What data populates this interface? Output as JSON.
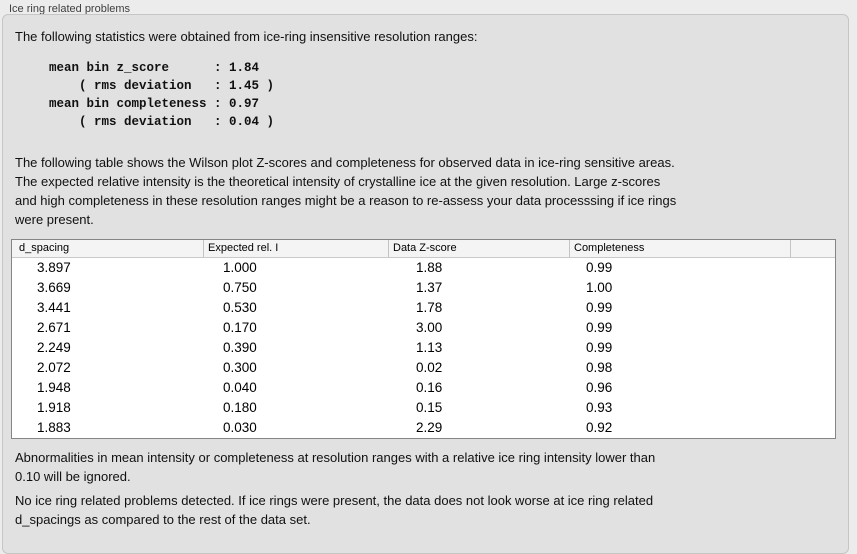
{
  "window": {
    "title": "Ice ring related problems"
  },
  "panel": {
    "intro": "The following statistics were obtained from ice-ring insensitive resolution ranges:",
    "stats_block": "mean bin z_score      : 1.84\n    ( rms deviation   : 1.45 )\nmean bin completeness : 0.97\n    ( rms deviation   : 0.04 )",
    "description": "The following table shows the Wilson plot Z-scores and completeness for observed data in ice-ring sensitive areas.\nThe expected relative intensity is the theoretical intensity of crystalline ice at the given resolution. Large z-scores\nand high completeness in these resolution ranges might be a reason to re-assess your data processsing if ice rings\nwere present.",
    "table": {
      "columns": [
        "d_spacing",
        "Expected rel. I",
        "Data Z-score",
        "Completeness"
      ],
      "rows": [
        [
          "3.897",
          "1.000",
          "1.88",
          "0.99"
        ],
        [
          "3.669",
          "0.750",
          "1.37",
          "1.00"
        ],
        [
          "3.441",
          "0.530",
          "1.78",
          "0.99"
        ],
        [
          "2.671",
          "0.170",
          "3.00",
          "0.99"
        ],
        [
          "2.249",
          "0.390",
          "1.13",
          "0.99"
        ],
        [
          "2.072",
          "0.300",
          "0.02",
          "0.98"
        ],
        [
          "1.948",
          "0.040",
          "0.16",
          "0.96"
        ],
        [
          "1.918",
          "0.180",
          "0.15",
          "0.93"
        ],
        [
          "1.883",
          "0.030",
          "2.29",
          "0.92"
        ]
      ]
    },
    "note_ignore": "Abnormalities in mean intensity or completeness at resolution ranges with a relative ice ring intensity lower than\n0.10 will be ignored.",
    "conclusion": "No ice ring related problems detected. If ice rings were present, the data does not look worse at ice ring related\nd_spacings as compared to the rest of the data set."
  },
  "colors": {
    "page_background": "#ececec",
    "panel_background": "#e1e1e1",
    "panel_border": "#c6c6c6",
    "table_background": "#ffffff",
    "table_border": "#858585",
    "table_header_background": "#f4f4f4",
    "text": "#101010",
    "title_text": "#3e3e3e"
  }
}
